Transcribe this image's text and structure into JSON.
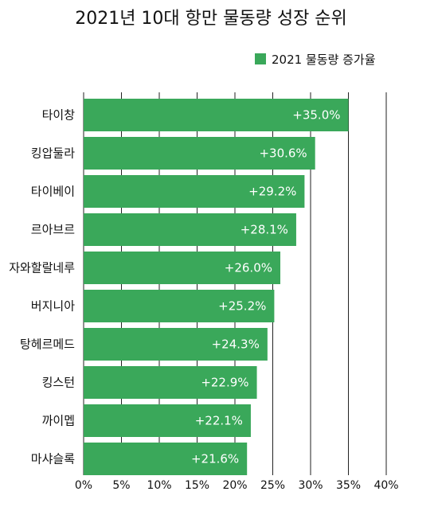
{
  "chart_data": {
    "type": "bar",
    "orientation": "horizontal",
    "title": "2021년 10대 항만 물동량 성장 순위",
    "legend_position": "top-right",
    "series": [
      {
        "name": "2021 물동량 증가율",
        "color": "#3aa85a",
        "values": [
          35.0,
          30.6,
          29.2,
          28.1,
          26.0,
          25.2,
          24.3,
          22.9,
          22.1,
          21.6
        ],
        "labels": [
          "+35.0%",
          "+30.6%",
          "+29.2%",
          "+28.1%",
          "+26.0%",
          "+25.2%",
          "+24.3%",
          "+22.9%",
          "+22.1%",
          "+21.6%"
        ]
      }
    ],
    "categories": [
      "타이창",
      "킹압둘라",
      "타이베이",
      "르아브르",
      "자와할랄네루",
      "버지니아",
      "탕헤르메드",
      "킹스턴",
      "까이멥",
      "마샤슬록"
    ],
    "xlim": [
      0,
      40
    ],
    "x_ticks": [
      0,
      5,
      10,
      15,
      20,
      25,
      30,
      35,
      40
    ],
    "x_tick_labels": [
      "0%",
      "5%",
      "10%",
      "15%",
      "20%",
      "25%",
      "30%",
      "35%",
      "40%"
    ],
    "grid": true
  }
}
